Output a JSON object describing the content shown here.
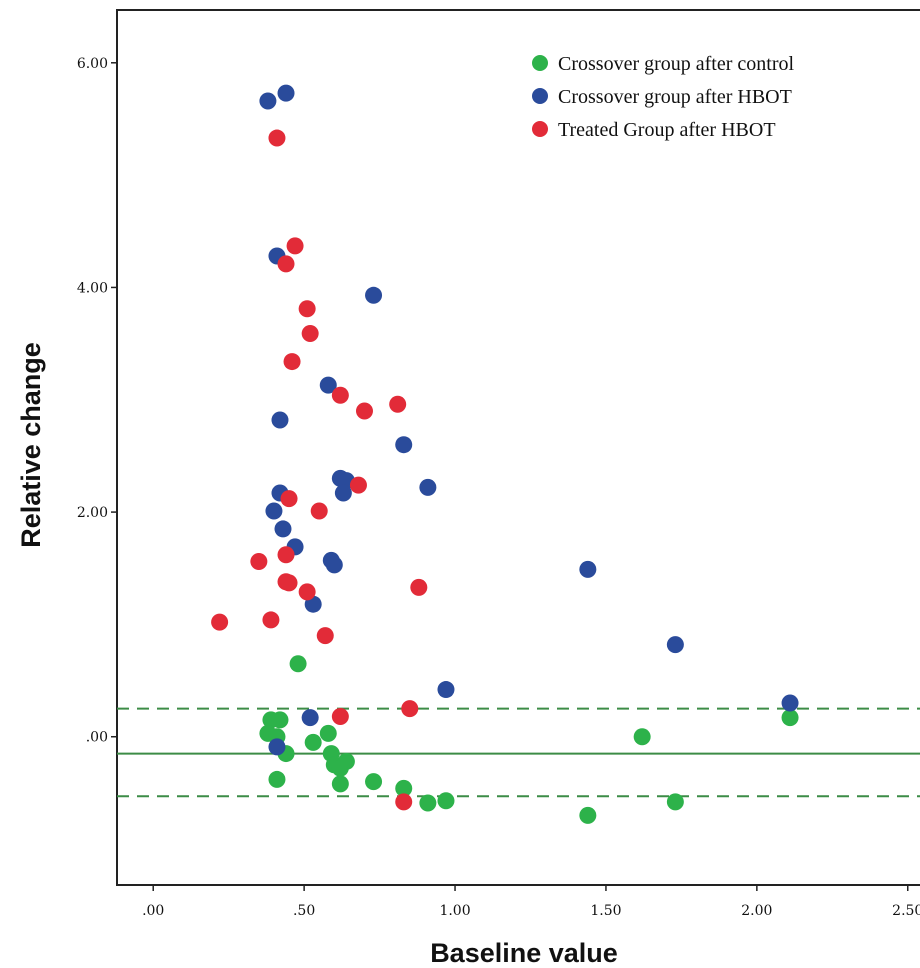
{
  "chart_data": {
    "type": "scatter",
    "xlabel": "Baseline value",
    "ylabel": "Relative change",
    "xlim": [
      -0.12,
      2.63
    ],
    "ylim": [
      -1.32,
      6.47
    ],
    "xticks": [
      0,
      0.5,
      1.0,
      1.5,
      2.0,
      2.5
    ],
    "xtick_labels": [
      ".00",
      ".50",
      "1.00",
      "1.50",
      "2.00",
      "2.50"
    ],
    "yticks": [
      0,
      2,
      4,
      6
    ],
    "ytick_labels": [
      ".00",
      "2.00",
      "4.00",
      "6.00"
    ],
    "legend_position": "top-right",
    "grid": false,
    "reference_lines": [
      {
        "kind": "mean",
        "y": -0.15,
        "style": "solid",
        "color": "#3c8c46"
      },
      {
        "kind": "upper-limit",
        "y": 0.25,
        "style": "dashed",
        "color": "#3c8c46"
      },
      {
        "kind": "lower-limit",
        "y": -0.53,
        "style": "dashed",
        "color": "#3c8c46"
      }
    ],
    "series": [
      {
        "name": "Crossover group after control",
        "color": "#2db24a",
        "points": [
          {
            "x": 0.48,
            "y": 0.65
          },
          {
            "x": 0.39,
            "y": 0.15
          },
          {
            "x": 0.42,
            "y": 0.15
          },
          {
            "x": 0.38,
            "y": 0.03
          },
          {
            "x": 0.41,
            "y": 0.0
          },
          {
            "x": 0.44,
            "y": -0.15
          },
          {
            "x": 0.41,
            "y": -0.38
          },
          {
            "x": 0.53,
            "y": -0.05
          },
          {
            "x": 0.58,
            "y": 0.03
          },
          {
            "x": 0.59,
            "y": -0.15
          },
          {
            "x": 0.6,
            "y": -0.25
          },
          {
            "x": 0.62,
            "y": -0.28
          },
          {
            "x": 0.64,
            "y": -0.22
          },
          {
            "x": 0.62,
            "y": -0.42
          },
          {
            "x": 0.73,
            "y": -0.4
          },
          {
            "x": 0.83,
            "y": -0.46
          },
          {
            "x": 0.91,
            "y": -0.59
          },
          {
            "x": 0.97,
            "y": -0.57
          },
          {
            "x": 1.44,
            "y": -0.7
          },
          {
            "x": 1.62,
            "y": 0.0
          },
          {
            "x": 1.73,
            "y": -0.58
          },
          {
            "x": 2.11,
            "y": 0.17
          }
        ]
      },
      {
        "name": "Crossover group after HBOT",
        "color": "#2a4b9b",
        "points": [
          {
            "x": 0.38,
            "y": 5.66
          },
          {
            "x": 0.44,
            "y": 5.73
          },
          {
            "x": 0.41,
            "y": 4.28
          },
          {
            "x": 0.73,
            "y": 3.93
          },
          {
            "x": 0.58,
            "y": 3.13
          },
          {
            "x": 0.42,
            "y": 2.82
          },
          {
            "x": 0.83,
            "y": 2.6
          },
          {
            "x": 0.42,
            "y": 2.17
          },
          {
            "x": 0.62,
            "y": 2.3
          },
          {
            "x": 0.64,
            "y": 2.28
          },
          {
            "x": 0.63,
            "y": 2.17
          },
          {
            "x": 0.91,
            "y": 2.22
          },
          {
            "x": 0.4,
            "y": 2.01
          },
          {
            "x": 0.43,
            "y": 1.85
          },
          {
            "x": 0.47,
            "y": 1.69
          },
          {
            "x": 0.59,
            "y": 1.57
          },
          {
            "x": 0.6,
            "y": 1.53
          },
          {
            "x": 0.53,
            "y": 1.18
          },
          {
            "x": 1.44,
            "y": 1.49
          },
          {
            "x": 1.73,
            "y": 0.82
          },
          {
            "x": 0.97,
            "y": 0.42
          },
          {
            "x": 0.52,
            "y": 0.17
          },
          {
            "x": 0.41,
            "y": -0.09
          },
          {
            "x": 2.11,
            "y": 0.3
          }
        ]
      },
      {
        "name": "Treated Group after HBOT",
        "color": "#e22b38",
        "points": [
          {
            "x": 0.41,
            "y": 5.33
          },
          {
            "x": 0.47,
            "y": 4.37
          },
          {
            "x": 0.44,
            "y": 4.21
          },
          {
            "x": 0.51,
            "y": 3.81
          },
          {
            "x": 0.52,
            "y": 3.59
          },
          {
            "x": 0.46,
            "y": 3.34
          },
          {
            "x": 0.62,
            "y": 3.04
          },
          {
            "x": 0.7,
            "y": 2.9
          },
          {
            "x": 0.81,
            "y": 2.96
          },
          {
            "x": 0.45,
            "y": 2.12
          },
          {
            "x": 0.55,
            "y": 2.01
          },
          {
            "x": 0.68,
            "y": 2.24
          },
          {
            "x": 0.44,
            "y": 1.62
          },
          {
            "x": 0.35,
            "y": 1.56
          },
          {
            "x": 0.44,
            "y": 1.38
          },
          {
            "x": 0.45,
            "y": 1.37
          },
          {
            "x": 0.51,
            "y": 1.29
          },
          {
            "x": 0.88,
            "y": 1.33
          },
          {
            "x": 0.22,
            "y": 1.02
          },
          {
            "x": 0.39,
            "y": 1.04
          },
          {
            "x": 0.57,
            "y": 0.9
          },
          {
            "x": 0.85,
            "y": 0.25
          },
          {
            "x": 0.62,
            "y": 0.18
          },
          {
            "x": 0.83,
            "y": -0.58
          }
        ]
      }
    ]
  }
}
